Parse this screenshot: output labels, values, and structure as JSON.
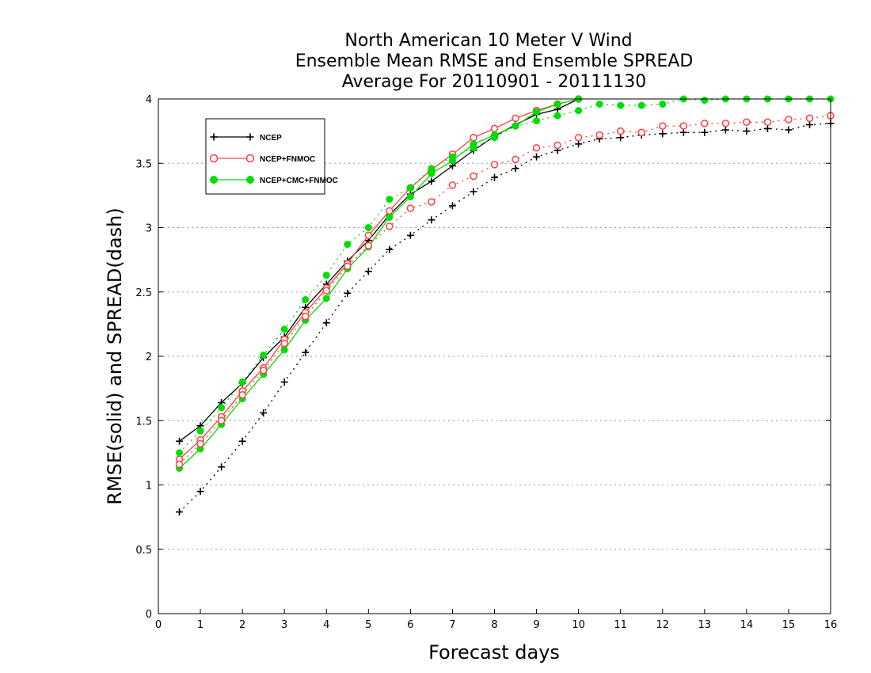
{
  "chart_data": {
    "type": "line",
    "title": [
      "North American 10 Meter V Wind",
      "Ensemble Mean RMSE and Ensemble SPREAD",
      "Average For 20110901 - 20111130"
    ],
    "xlabel": "Forecast days",
    "ylabel": "RMSE(solid) and SPREAD(dash)",
    "xlim": [
      0,
      16
    ],
    "ylim": [
      0,
      4
    ],
    "xticks": [
      0,
      1,
      2,
      3,
      4,
      5,
      6,
      7,
      8,
      9,
      10,
      11,
      12,
      13,
      14,
      15,
      16
    ],
    "yticks": [
      0,
      0.5,
      1,
      1.5,
      2,
      2.5,
      3,
      3.5,
      4
    ],
    "ytick_labels": [
      "0",
      "0.5",
      "1",
      "1.5",
      "2",
      "2.5",
      "3",
      "3.5",
      "4"
    ],
    "grid": "horizontal dotted",
    "legend_placement": "top-left",
    "series": [
      {
        "name": "NCEP",
        "kind": "RMSE",
        "style": "solid",
        "marker": "plus",
        "color": "#000000",
        "x": [
          0.5,
          1,
          1.5,
          2,
          2.5,
          3,
          3.5,
          4,
          4.5,
          5,
          5.5,
          6,
          6.5,
          7,
          7.5,
          8,
          8.5,
          9,
          9.5,
          10
        ],
        "values": [
          1.34,
          1.46,
          1.64,
          1.79,
          1.99,
          2.15,
          2.38,
          2.56,
          2.74,
          2.9,
          3.1,
          3.26,
          3.36,
          3.48,
          3.6,
          3.71,
          3.8,
          3.88,
          3.92,
          4.0
        ]
      },
      {
        "name": "NCEP+FNMOC",
        "kind": "RMSE",
        "style": "solid",
        "marker": "open-circle",
        "color": "#ff4040",
        "x": [
          0.5,
          1,
          1.5,
          2,
          2.5,
          3,
          3.5,
          4,
          4.5,
          5,
          5.5,
          6,
          6.5,
          7,
          7.5,
          8,
          8.5,
          9,
          9.5,
          10
        ],
        "values": [
          1.2,
          1.35,
          1.53,
          1.73,
          1.91,
          2.13,
          2.34,
          2.53,
          2.72,
          2.94,
          3.13,
          3.31,
          3.45,
          3.57,
          3.7,
          3.77,
          3.85,
          3.91,
          3.96,
          4.0
        ]
      },
      {
        "name": "NCEP+CMC+FNMOC",
        "kind": "RMSE",
        "style": "solid",
        "marker": "filled-circle",
        "color": "#00dd00",
        "x": [
          0.5,
          1,
          1.5,
          2,
          2.5,
          3,
          3.5,
          4,
          4.5,
          5,
          5.5,
          6,
          6.5,
          7,
          7.5,
          8,
          8.5,
          9,
          9.5,
          10
        ],
        "values": [
          1.13,
          1.28,
          1.47,
          1.67,
          1.86,
          2.05,
          2.28,
          2.45,
          2.68,
          2.85,
          3.08,
          3.24,
          3.42,
          3.52,
          3.65,
          3.72,
          3.79,
          3.9,
          3.96,
          4.0
        ]
      },
      {
        "name": "NCEP",
        "kind": "SPREAD",
        "style": "dash",
        "marker": "plus",
        "color": "#000000",
        "x": [
          0.5,
          1,
          1.5,
          2,
          2.5,
          3,
          3.5,
          4,
          4.5,
          5,
          5.5,
          6,
          6.5,
          7,
          7.5,
          8,
          8.5,
          9,
          9.5,
          10,
          10.5,
          11,
          11.5,
          12,
          12.5,
          13,
          13.5,
          14,
          14.5,
          15,
          15.5,
          16
        ],
        "values": [
          0.79,
          0.95,
          1.14,
          1.34,
          1.56,
          1.8,
          2.03,
          2.26,
          2.49,
          2.66,
          2.83,
          2.94,
          3.06,
          3.17,
          3.28,
          3.39,
          3.46,
          3.55,
          3.6,
          3.65,
          3.69,
          3.7,
          3.72,
          3.73,
          3.74,
          3.74,
          3.76,
          3.75,
          3.77,
          3.76,
          3.8,
          3.81
        ]
      },
      {
        "name": "NCEP+FNMOC",
        "kind": "SPREAD",
        "style": "dash",
        "marker": "open-circle",
        "color": "#ff4040",
        "x": [
          0.5,
          1,
          1.5,
          2,
          2.5,
          3,
          3.5,
          4,
          4.5,
          5,
          5.5,
          6,
          6.5,
          7,
          7.5,
          8,
          8.5,
          9,
          9.5,
          10,
          10.5,
          11,
          11.5,
          12,
          12.5,
          13,
          13.5,
          14,
          14.5,
          15,
          15.5,
          16
        ],
        "values": [
          1.16,
          1.32,
          1.5,
          1.7,
          1.89,
          2.1,
          2.31,
          2.51,
          2.7,
          2.86,
          3.01,
          3.15,
          3.2,
          3.33,
          3.4,
          3.49,
          3.53,
          3.62,
          3.64,
          3.7,
          3.72,
          3.75,
          3.74,
          3.79,
          3.79,
          3.81,
          3.81,
          3.82,
          3.82,
          3.84,
          3.85,
          3.87
        ]
      },
      {
        "name": "NCEP+CMC+FNMOC",
        "kind": "SPREAD",
        "style": "dash",
        "marker": "filled-circle",
        "color": "#00dd00",
        "x": [
          0.5,
          1,
          1.5,
          2,
          2.5,
          3,
          3.5,
          4,
          4.5,
          5,
          5.5,
          6,
          6.5,
          7,
          7.5,
          8,
          8.5,
          9,
          9.5,
          10,
          10.5,
          11,
          11.5,
          12,
          12.5,
          13,
          13.5,
          14,
          14.5,
          15,
          15.5,
          16
        ],
        "values": [
          1.25,
          1.42,
          1.6,
          1.8,
          2.01,
          2.21,
          2.44,
          2.63,
          2.87,
          3.0,
          3.22,
          3.31,
          3.46,
          3.55,
          3.62,
          3.7,
          3.79,
          3.83,
          3.87,
          3.91,
          3.96,
          3.95,
          3.95,
          3.96,
          4.0,
          3.99,
          4.0,
          4.0,
          4.0,
          4.0,
          4.0,
          4.0
        ]
      }
    ]
  }
}
